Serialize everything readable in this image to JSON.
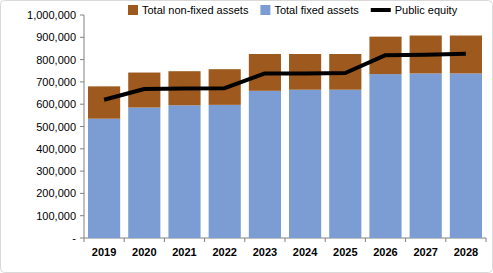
{
  "chart_data": {
    "type": "bar",
    "stacked": true,
    "grid": false,
    "legend": "top",
    "categories": [
      "2019",
      "2020",
      "2021",
      "2022",
      "2023",
      "2024",
      "2025",
      "2026",
      "2027",
      "2028"
    ],
    "series": [
      {
        "name": "Total fixed assets",
        "type": "bar",
        "color": "#7b9dd4",
        "values": [
          535000,
          585000,
          595000,
          597000,
          660000,
          665000,
          665000,
          735000,
          738000,
          738000
        ]
      },
      {
        "name": "Total non-fixed assets",
        "type": "bar",
        "color": "#9e5a1e",
        "values": [
          145000,
          157000,
          153000,
          160000,
          165000,
          160000,
          160000,
          168000,
          170000,
          170000
        ]
      },
      {
        "name": "Public equity",
        "type": "line",
        "color": "#000000",
        "line_style": "solid",
        "values": [
          620000,
          668000,
          670000,
          672000,
          738000,
          738000,
          740000,
          820000,
          822000,
          826000
        ]
      }
    ],
    "ylim": [
      0,
      1000000
    ],
    "yticks": [
      {
        "value": 0,
        "label": "-"
      },
      {
        "value": 100000,
        "label": "100,000"
      },
      {
        "value": 200000,
        "label": "200,000"
      },
      {
        "value": 300000,
        "label": "300,000"
      },
      {
        "value": 400000,
        "label": "400,000"
      },
      {
        "value": 500000,
        "label": "500,000"
      },
      {
        "value": 600000,
        "label": "600,000"
      },
      {
        "value": 700000,
        "label": "700,000"
      },
      {
        "value": 800000,
        "label": "800,000"
      },
      {
        "value": 900000,
        "label": "900,000"
      },
      {
        "value": 1000000,
        "label": "1,000,000"
      }
    ]
  }
}
